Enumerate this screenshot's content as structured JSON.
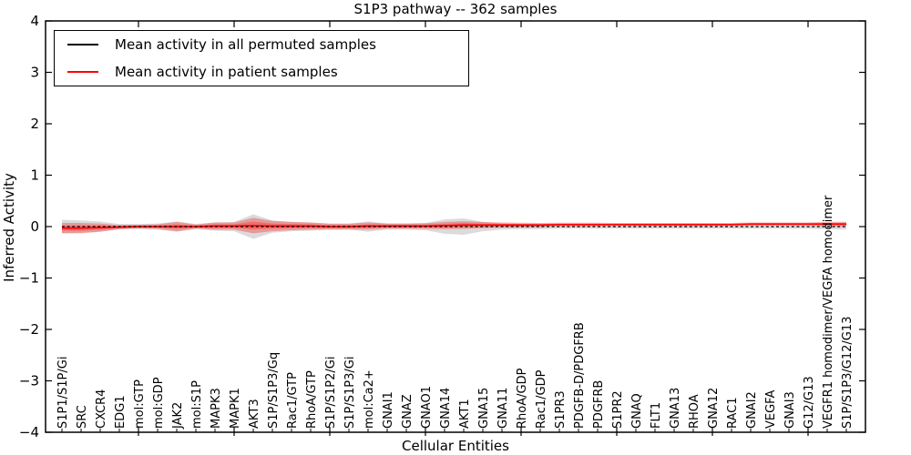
{
  "figure": {
    "background": "#ffffff",
    "axes_color": "#000000"
  },
  "chart_data": {
    "type": "line",
    "title": "S1P3 pathway -- 362 samples",
    "xlabel": "Cellular Entities",
    "ylabel": "Inferred Activity",
    "ylim": [
      -4,
      4
    ],
    "yticks": [
      4,
      3,
      2,
      1,
      0,
      -1,
      -2,
      -3,
      -4
    ],
    "grid": false,
    "legend_position": "upper left",
    "x_tick_rotation_deg": 90,
    "categories": [
      "S1P1/S1P/Gi",
      "SRC",
      "CXCR4",
      "EDG1",
      "mol:GTP",
      "mol:GDP",
      "JAK2",
      "mol:S1P",
      "MAPK3",
      "MAPK1",
      "AKT3",
      "S1P/S1P3/Gq",
      "Rac1/GTP",
      "RhoA/GTP",
      "S1P/S1P2/Gi",
      "S1P/S1P3/Gi",
      "mol:Ca2+",
      "GNAI1",
      "GNAZ",
      "GNAO1",
      "GNA14",
      "AKT1",
      "GNA15",
      "GNA11",
      "RhoA/GDP",
      "Rac1/GDP",
      "S1PR3",
      "PDGFB-D/PDGFRB",
      "PDGFRB",
      "S1PR2",
      "GNAQ",
      "FLT1",
      "GNA13",
      "RHOA",
      "GNA12",
      "RAC1",
      "GNAI2",
      "VEGFA",
      "GNAI3",
      "G12/G13",
      "VEGFR1 homodimer/VEGFA homodimer",
      "S1P/S1P3/G12/G13"
    ],
    "series": [
      {
        "name": "Mean activity in all permuted samples",
        "color": "#000000",
        "line_style": "dashed",
        "band_fill": "rgba(0,0,0,0.14)",
        "mean": [
          0,
          0,
          0,
          0,
          0,
          0,
          0,
          0,
          0,
          0,
          0,
          0,
          0,
          0,
          0,
          0,
          0,
          0,
          0,
          0,
          0,
          0,
          0,
          0,
          0,
          0,
          0,
          0,
          0,
          0,
          0,
          0,
          0,
          0,
          0,
          0,
          0,
          0,
          0,
          0,
          0,
          0
        ],
        "std": [
          0.13,
          0.12,
          0.1,
          0.05,
          0.05,
          0.06,
          0.1,
          0.05,
          0.08,
          0.09,
          0.24,
          0.12,
          0.09,
          0.08,
          0.06,
          0.06,
          0.1,
          0.06,
          0.06,
          0.07,
          0.14,
          0.16,
          0.09,
          0.06,
          0.05,
          0.05,
          0.04,
          0.04,
          0.04,
          0.04,
          0.04,
          0.04,
          0.04,
          0.04,
          0.04,
          0.04,
          0.04,
          0.04,
          0.04,
          0.04,
          0.05,
          0.06
        ]
      },
      {
        "name": "Mean activity in patient samples",
        "color": "#ff0000",
        "line_style": "solid",
        "band_fill": "rgba(255,0,0,0.30)",
        "band_fill_inner": "rgba(255,0,0,0.28)",
        "mean": [
          -0.03,
          -0.03,
          -0.02,
          -0.01,
          0,
          0,
          0,
          0,
          0.01,
          0.01,
          0.02,
          0.01,
          0.01,
          0.01,
          0,
          0,
          0.01,
          0.01,
          0.01,
          0.01,
          0.02,
          0.03,
          0.03,
          0.03,
          0.03,
          0.03,
          0.04,
          0.04,
          0.04,
          0.04,
          0.04,
          0.04,
          0.04,
          0.04,
          0.04,
          0.04,
          0.05,
          0.05,
          0.05,
          0.05,
          0.05,
          0.05
        ],
        "std": [
          0.1,
          0.1,
          0.08,
          0.04,
          0.035,
          0.045,
          0.09,
          0.04,
          0.07,
          0.07,
          0.15,
          0.1,
          0.08,
          0.07,
          0.055,
          0.055,
          0.07,
          0.05,
          0.05,
          0.055,
          0.07,
          0.075,
          0.06,
          0.05,
          0.045,
          0.04,
          0.035,
          0.035,
          0.035,
          0.03,
          0.03,
          0.03,
          0.03,
          0.03,
          0.03,
          0.03,
          0.03,
          0.03,
          0.03,
          0.03,
          0.04,
          0.045
        ]
      }
    ]
  },
  "legend": {
    "entries": [
      {
        "label": "Mean activity in all permuted samples",
        "color": "#000000"
      },
      {
        "label": "Mean activity in patient samples",
        "color": "#ff0000"
      }
    ]
  }
}
